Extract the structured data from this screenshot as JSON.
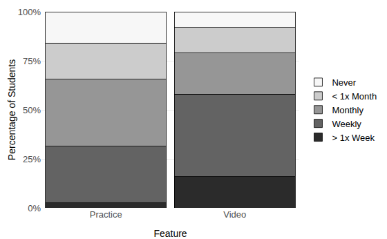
{
  "chart_data": {
    "type": "bar",
    "stacked": true,
    "grid": true,
    "legend": "right",
    "x_label": "Feature",
    "y_label": "Percentage of Students",
    "categories": [
      "Practice",
      "Video"
    ],
    "ylim": [
      0,
      100
    ],
    "yticks": [
      {
        "value": 0,
        "label": "0%"
      },
      {
        "value": 25,
        "label": "25%"
      },
      {
        "value": 50,
        "label": "50%"
      },
      {
        "value": 75,
        "label": "75%"
      },
      {
        "value": 100,
        "label": "100%"
      }
    ],
    "series": [
      {
        "name": "> 1x Week",
        "color": "#2b2b2b",
        "values": [
          2.5,
          16
        ]
      },
      {
        "name": "Weekly",
        "color": "#636363",
        "values": [
          29,
          42
        ]
      },
      {
        "name": "Monthly",
        "color": "#969696",
        "values": [
          34,
          21
        ]
      },
      {
        "name": "< 1x Month",
        "color": "#cccccc",
        "values": [
          18.5,
          13
        ]
      },
      {
        "name": "Never",
        "color": "#f7f7f7",
        "values": [
          16,
          8
        ]
      }
    ]
  }
}
